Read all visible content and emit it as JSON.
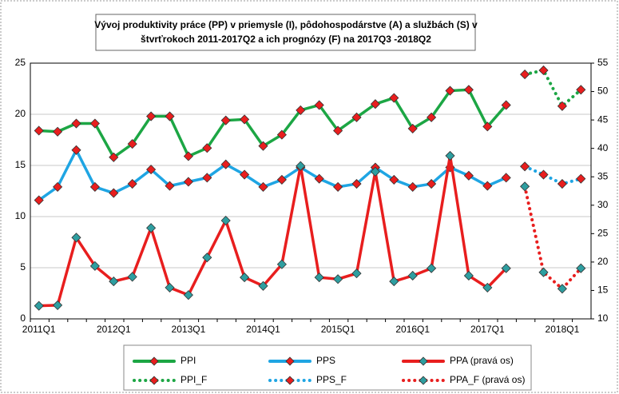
{
  "chart_data": {
    "type": "line",
    "title": "Vývoj produktivity práce (PP) v priemysle (I), pôdohospodárstve (A) a službách (S) v",
    "subtitle": "štvrťrokoch 2011-2017Q2  a ich prognózy (F) na 2017Q3 -2018Q2",
    "categories": [
      "2011Q1",
      null,
      null,
      null,
      "2012Q1",
      null,
      null,
      null,
      "2013Q1",
      null,
      null,
      null,
      "2014Q1",
      null,
      null,
      null,
      "2015Q1",
      null,
      null,
      null,
      "2016Q1",
      null,
      null,
      null,
      "2017Q1",
      null,
      null,
      null,
      "2018Q1",
      null
    ],
    "ylim": [
      0,
      25
    ],
    "yticks": [
      0,
      5,
      10,
      15,
      20,
      25
    ],
    "y2lim": [
      10,
      55
    ],
    "y2ticks": [
      10,
      15,
      20,
      25,
      30,
      35,
      40,
      45,
      50,
      55
    ],
    "grid": true,
    "legend": "bottom",
    "series": [
      {
        "name": "PPI",
        "color": "#1ca644",
        "marker_color": "#e81e1e",
        "line_style": "solid",
        "values": [
          18.4,
          18.3,
          19.1,
          19.1,
          15.8,
          17.1,
          19.8,
          19.8,
          15.9,
          16.7,
          19.4,
          19.5,
          16.9,
          18.0,
          20.4,
          20.9,
          18.4,
          19.7,
          21.0,
          21.6,
          18.6,
          19.7,
          22.3,
          22.4,
          18.8,
          20.9,
          null,
          null,
          null,
          null
        ]
      },
      {
        "name": "PPI_F",
        "color": "#1ca644",
        "marker_color": "#e81e1e",
        "line_style": "dotted",
        "values": [
          null,
          null,
          null,
          null,
          null,
          null,
          null,
          null,
          null,
          null,
          null,
          null,
          null,
          null,
          null,
          null,
          null,
          null,
          null,
          null,
          null,
          null,
          null,
          null,
          null,
          null,
          23.9,
          24.3,
          20.8,
          22.4
        ]
      },
      {
        "name": "PPS",
        "color": "#1fa5e3",
        "marker_color": "#e81e1e",
        "line_style": "solid",
        "values": [
          11.6,
          12.9,
          16.5,
          12.9,
          12.3,
          13.2,
          14.6,
          13.0,
          13.4,
          13.8,
          15.1,
          14.1,
          12.9,
          13.6,
          14.8,
          13.7,
          12.9,
          13.2,
          14.8,
          13.6,
          12.9,
          13.2,
          14.8,
          14.0,
          13.0,
          13.8,
          null,
          null,
          null,
          null
        ]
      },
      {
        "name": "PPS_F",
        "color": "#1fa5e3",
        "marker_color": "#e81e1e",
        "line_style": "dotted",
        "values": [
          null,
          null,
          null,
          null,
          null,
          null,
          null,
          null,
          null,
          null,
          null,
          null,
          null,
          null,
          null,
          null,
          null,
          null,
          null,
          null,
          null,
          null,
          null,
          null,
          null,
          null,
          14.9,
          14.1,
          13.2,
          13.7
        ]
      },
      {
        "name": "PPA (pravá os)",
        "axis": "y2",
        "color": "#e81e1e",
        "marker_color": "#2e9ea0",
        "line_style": "solid",
        "values": [
          12.3,
          12.4,
          24.3,
          19.3,
          16.6,
          17.4,
          26.0,
          15.5,
          14.2,
          20.8,
          27.3,
          17.3,
          15.8,
          19.6,
          36.9,
          17.3,
          17.0,
          18.0,
          35.9,
          16.6,
          17.6,
          18.9,
          38.7,
          17.6,
          15.5,
          18.9,
          null,
          null,
          null,
          null
        ]
      },
      {
        "name": "PPA_F (pravá os)",
        "axis": "y2",
        "color": "#e81e1e",
        "marker_color": "#2e9ea0",
        "line_style": "dotted",
        "values": [
          null,
          null,
          null,
          null,
          null,
          null,
          null,
          null,
          null,
          null,
          null,
          null,
          null,
          null,
          null,
          null,
          null,
          null,
          null,
          null,
          null,
          null,
          null,
          null,
          null,
          null,
          33.3,
          18.2,
          15.3,
          18.9
        ]
      }
    ]
  }
}
